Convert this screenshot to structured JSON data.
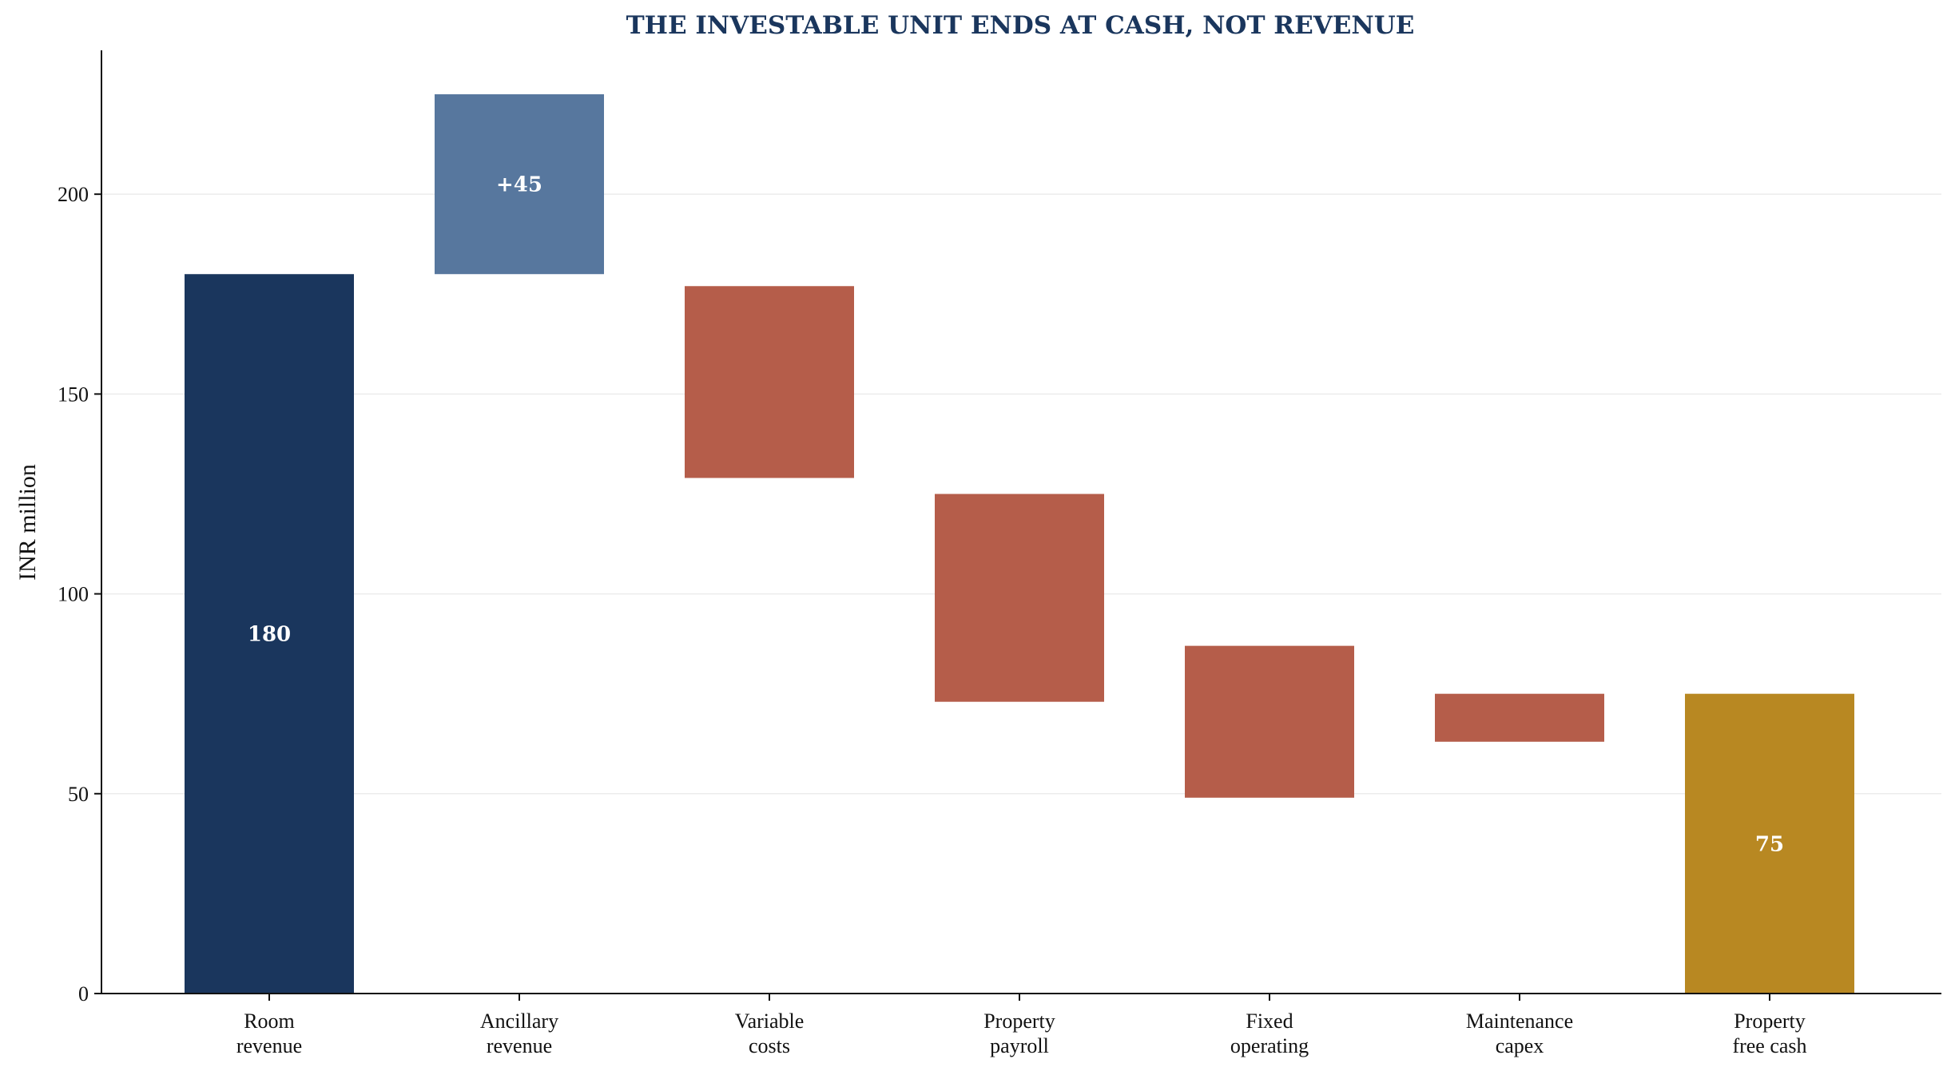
{
  "chart_data": {
    "type": "bar",
    "subtype": "waterfall",
    "title": "THE INVESTABLE UNIT ENDS AT CASH, NOT REVENUE",
    "xlabel": "",
    "ylabel": "INR million",
    "ylim": [
      0,
      236
    ],
    "yticks": [
      0,
      50,
      100,
      150,
      200
    ],
    "grid": "horizontal",
    "legend": "none",
    "categories": [
      [
        "Room",
        "revenue"
      ],
      [
        "Ancillary",
        "revenue"
      ],
      [
        "Variable",
        "costs"
      ],
      [
        "Property",
        "payroll"
      ],
      [
        "Fixed",
        "operating"
      ],
      [
        "Maintenance",
        "capex"
      ],
      [
        "Property",
        "free cash"
      ]
    ],
    "bars": [
      {
        "kind": "total",
        "base": 0,
        "top": 180,
        "label": "180"
      },
      {
        "kind": "increase",
        "base": 180,
        "top": 225,
        "label": "+45"
      },
      {
        "kind": "decrease",
        "base": 129,
        "top": 177,
        "label": ""
      },
      {
        "kind": "decrease",
        "base": 73,
        "top": 125,
        "label": ""
      },
      {
        "kind": "decrease",
        "base": 49,
        "top": 87,
        "label": ""
      },
      {
        "kind": "decrease",
        "base": 63,
        "top": 75,
        "label": ""
      },
      {
        "kind": "total",
        "base": 0,
        "top": 75,
        "label": "75"
      }
    ],
    "colors": {
      "total": "#1a365d",
      "increase": "#57779e",
      "decrease": "#b55d4a",
      "final": "#b88822",
      "title": "#1a365d",
      "grid": "#ececec",
      "axis": "#111111"
    }
  }
}
